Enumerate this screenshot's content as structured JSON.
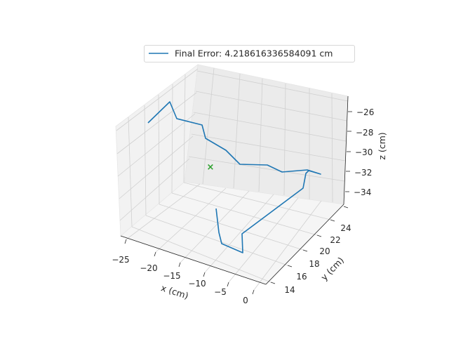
{
  "chart_data": {
    "type": "line",
    "projection": "3d",
    "xlabel": "x (cm)",
    "ylabel": "y (cm)",
    "zlabel": "z (cm)",
    "x_ticks": [
      "−25",
      "−20",
      "−15",
      "−10",
      "−5",
      "0"
    ],
    "y_ticks": [
      "14",
      "16",
      "18",
      "20",
      "22",
      "24"
    ],
    "z_ticks": [
      "−26",
      "−28",
      "−30",
      "−32",
      "−34"
    ],
    "legend": {
      "label": "Final Error: 4.218616336584091 cm",
      "placement": "top-center"
    },
    "grid": true,
    "series": [
      {
        "name": "Final Error: 4.218616336584091 cm",
        "color": "#1f77b4",
        "points_screen_order": [
          [
            211,
            175
          ],
          [
            242,
            145
          ],
          [
            252,
            169
          ],
          [
            288,
            178
          ],
          [
            293,
            197
          ],
          [
            322,
            214
          ],
          [
            342,
            234
          ],
          [
            381,
            235
          ],
          [
            402,
            245
          ],
          [
            438,
            242
          ],
          [
            457,
            248
          ],
          [
            440,
            243
          ],
          [
            436,
            247
          ],
          [
            432,
            268
          ],
          [
            345,
            333
          ],
          [
            346,
            360
          ],
          [
            316,
            347
          ],
          [
            312,
            331
          ],
          [
            308,
            297
          ]
        ]
      }
    ],
    "target_marker": {
      "symbol": "×",
      "color": "#2ca02c"
    }
  }
}
